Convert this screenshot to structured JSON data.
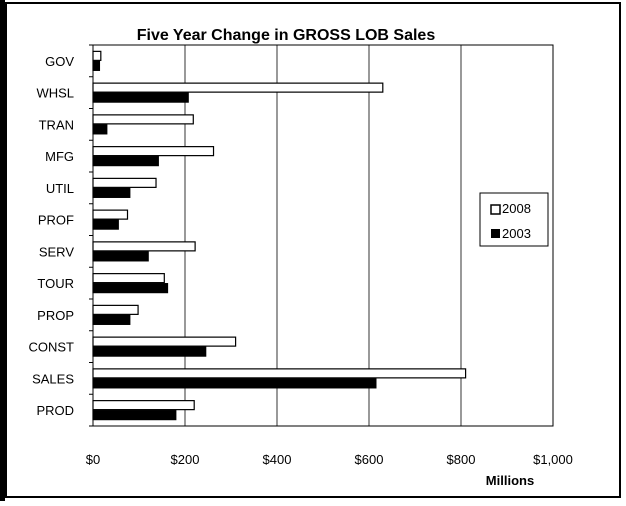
{
  "chart_data": {
    "type": "bar",
    "orientation": "horizontal",
    "title": "Five Year Change in GROSS LOB Sales",
    "xlabel": "Millions",
    "ylabel": "",
    "categories": [
      "GOV",
      "WHSL",
      "TRAN",
      "MFG",
      "UTIL",
      "PROF",
      "SERV",
      "TOUR",
      "PROP",
      "CONST",
      "SALES",
      "PROD"
    ],
    "series": [
      {
        "name": "2008",
        "color": "#ffffff",
        "values": [
          17,
          630,
          218,
          262,
          137,
          75,
          222,
          155,
          98,
          310,
          810,
          220
        ]
      },
      {
        "name": "2003",
        "color": "#000000",
        "values": [
          14,
          207,
          30,
          142,
          80,
          55,
          120,
          162,
          80,
          245,
          615,
          180
        ]
      }
    ],
    "xlim": [
      0,
      1000
    ],
    "x_ticks": [
      0,
      200,
      400,
      600,
      800,
      1000
    ],
    "x_tick_labels": [
      "$0",
      "$200",
      "$400",
      "$600",
      "$800",
      "$1,000"
    ],
    "grid": "vertical",
    "legend_position": "right"
  }
}
